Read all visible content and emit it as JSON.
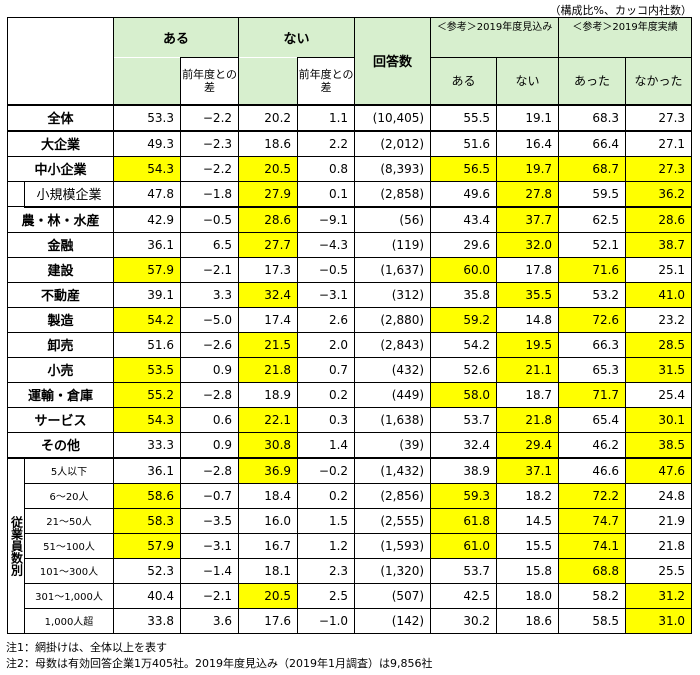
{
  "unit_note": "（構成比%、カッコ内社数）",
  "headers": {
    "aru": "ある",
    "nai": "ない",
    "diff": "前年度との差",
    "count": "回答数",
    "ref_forecast": "＜参考＞2019年度見込み",
    "ref_actual": "＜参考＞2019年度実績",
    "f_aru": "ある",
    "f_nai": "ない",
    "a_atta": "あった",
    "a_nakatta": "なかった"
  },
  "side_label": "従業員数別",
  "rows": [
    {
      "label": "全体",
      "aru": "53.3",
      "aru_diff": "−2.2",
      "nai": "20.2",
      "nai_diff": "1.1",
      "count": "(10,405)",
      "f_aru": "55.5",
      "f_nai": "19.1",
      "a_atta": "68.3",
      "a_nakatta": "27.3"
    },
    {
      "label": "大企業",
      "aru": "49.3",
      "aru_diff": "−2.3",
      "nai": "18.6",
      "nai_diff": "2.2",
      "count": "(2,012)",
      "f_aru": "51.6",
      "f_nai": "16.4",
      "a_atta": "66.4",
      "a_nakatta": "27.1"
    },
    {
      "label": "中小企業",
      "aru": "54.3",
      "aru_diff": "−2.2",
      "nai": "20.5",
      "nai_diff": "0.8",
      "count": "(8,393)",
      "f_aru": "56.5",
      "f_nai": "19.7",
      "a_atta": "68.7",
      "a_nakatta": "27.3"
    },
    {
      "label": "小規模企業",
      "aru": "47.8",
      "aru_diff": "−1.8",
      "nai": "27.9",
      "nai_diff": "0.1",
      "count": "(2,858)",
      "f_aru": "49.6",
      "f_nai": "27.8",
      "a_atta": "59.5",
      "a_nakatta": "36.2"
    },
    {
      "label": "農・林・水産",
      "aru": "42.9",
      "aru_diff": "−0.5",
      "nai": "28.6",
      "nai_diff": "−9.1",
      "count": "(56)",
      "f_aru": "43.4",
      "f_nai": "37.7",
      "a_atta": "62.5",
      "a_nakatta": "28.6"
    },
    {
      "label": "金融",
      "aru": "36.1",
      "aru_diff": "6.5",
      "nai": "27.7",
      "nai_diff": "−4.3",
      "count": "(119)",
      "f_aru": "29.6",
      "f_nai": "32.0",
      "a_atta": "52.1",
      "a_nakatta": "38.7"
    },
    {
      "label": "建設",
      "aru": "57.9",
      "aru_diff": "−2.1",
      "nai": "17.3",
      "nai_diff": "−0.5",
      "count": "(1,637)",
      "f_aru": "60.0",
      "f_nai": "17.8",
      "a_atta": "71.6",
      "a_nakatta": "25.1"
    },
    {
      "label": "不動産",
      "aru": "39.1",
      "aru_diff": "3.3",
      "nai": "32.4",
      "nai_diff": "−3.1",
      "count": "(312)",
      "f_aru": "35.8",
      "f_nai": "35.5",
      "a_atta": "53.2",
      "a_nakatta": "41.0"
    },
    {
      "label": "製造",
      "aru": "54.2",
      "aru_diff": "−5.0",
      "nai": "17.4",
      "nai_diff": "2.6",
      "count": "(2,880)",
      "f_aru": "59.2",
      "f_nai": "14.8",
      "a_atta": "72.6",
      "a_nakatta": "23.2"
    },
    {
      "label": "卸売",
      "aru": "51.6",
      "aru_diff": "−2.6",
      "nai": "21.5",
      "nai_diff": "2.0",
      "count": "(2,843)",
      "f_aru": "54.2",
      "f_nai": "19.5",
      "a_atta": "66.3",
      "a_nakatta": "28.5"
    },
    {
      "label": "小売",
      "aru": "53.5",
      "aru_diff": "0.9",
      "nai": "21.8",
      "nai_diff": "0.7",
      "count": "(432)",
      "f_aru": "52.6",
      "f_nai": "21.1",
      "a_atta": "65.3",
      "a_nakatta": "31.5"
    },
    {
      "label": "運輸・倉庫",
      "aru": "55.2",
      "aru_diff": "−2.8",
      "nai": "18.9",
      "nai_diff": "0.2",
      "count": "(449)",
      "f_aru": "58.0",
      "f_nai": "18.7",
      "a_atta": "71.7",
      "a_nakatta": "25.4"
    },
    {
      "label": "サービス",
      "aru": "54.3",
      "aru_diff": "0.6",
      "nai": "22.1",
      "nai_diff": "0.3",
      "count": "(1,638)",
      "f_aru": "53.7",
      "f_nai": "21.8",
      "a_atta": "65.4",
      "a_nakatta": "30.1"
    },
    {
      "label": "その他",
      "aru": "33.3",
      "aru_diff": "0.9",
      "nai": "30.8",
      "nai_diff": "1.4",
      "count": "(39)",
      "f_aru": "32.4",
      "f_nai": "29.4",
      "a_atta": "46.2",
      "a_nakatta": "38.5"
    },
    {
      "label": "5人以下",
      "aru": "36.1",
      "aru_diff": "−2.8",
      "nai": "36.9",
      "nai_diff": "−0.2",
      "count": "(1,432)",
      "f_aru": "38.9",
      "f_nai": "37.1",
      "a_atta": "46.6",
      "a_nakatta": "47.6"
    },
    {
      "label": "6～20人",
      "aru": "58.6",
      "aru_diff": "−0.7",
      "nai": "18.4",
      "nai_diff": "0.2",
      "count": "(2,856)",
      "f_aru": "59.3",
      "f_nai": "18.2",
      "a_atta": "72.2",
      "a_nakatta": "24.8"
    },
    {
      "label": "21～50人",
      "aru": "58.3",
      "aru_diff": "−3.5",
      "nai": "16.0",
      "nai_diff": "1.5",
      "count": "(2,555)",
      "f_aru": "61.8",
      "f_nai": "14.5",
      "a_atta": "74.7",
      "a_nakatta": "21.9"
    },
    {
      "label": "51～100人",
      "aru": "57.9",
      "aru_diff": "−3.1",
      "nai": "16.7",
      "nai_diff": "1.2",
      "count": "(1,593)",
      "f_aru": "61.0",
      "f_nai": "15.5",
      "a_atta": "74.1",
      "a_nakatta": "21.8"
    },
    {
      "label": "101～300人",
      "aru": "52.3",
      "aru_diff": "−1.4",
      "nai": "18.1",
      "nai_diff": "2.3",
      "count": "(1,320)",
      "f_aru": "53.7",
      "f_nai": "15.8",
      "a_atta": "68.8",
      "a_nakatta": "25.5"
    },
    {
      "label": "301～1,000人",
      "aru": "40.4",
      "aru_diff": "−2.1",
      "nai": "20.5",
      "nai_diff": "2.5",
      "count": "(507)",
      "f_aru": "42.5",
      "f_nai": "18.0",
      "a_atta": "58.2",
      "a_nakatta": "31.2"
    },
    {
      "label": "1,000人超",
      "aru": "33.8",
      "aru_diff": "3.6",
      "nai": "17.6",
      "nai_diff": "−1.0",
      "count": "(142)",
      "f_aru": "30.2",
      "f_nai": "18.6",
      "a_atta": "58.5",
      "a_nakatta": "31.0"
    }
  ],
  "highlight_color": "#ffff00",
  "header_color": "#d7efce",
  "notes": [
    "注1：網掛けは、全体以上を表す",
    "注2：母数は有効回答企業1万405社。2019年度見込み（2019年1月調査）は9,856社"
  ]
}
